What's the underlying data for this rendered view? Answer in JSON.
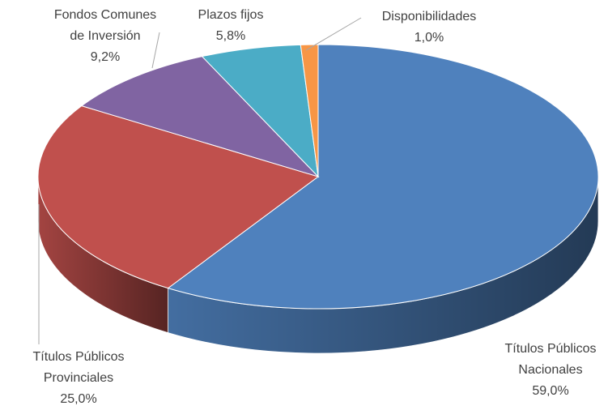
{
  "chart_data": {
    "type": "pie",
    "categories": [
      "Títulos Públicos Nacionales",
      "Títulos Públicos Provinciales",
      "Fondos Comunes de Inversión",
      "Plazos fijos",
      "Disponibilidades"
    ],
    "values": [
      59.0,
      25.0,
      9.2,
      5.8,
      1.0
    ],
    "value_labels": [
      "59,0%",
      "25,0%",
      "9,2%",
      "5,8%",
      "1,0%"
    ],
    "colors": [
      "#4f81bd",
      "#c0504d",
      "#8064a2",
      "#4bacc6",
      "#f79646"
    ]
  }
}
